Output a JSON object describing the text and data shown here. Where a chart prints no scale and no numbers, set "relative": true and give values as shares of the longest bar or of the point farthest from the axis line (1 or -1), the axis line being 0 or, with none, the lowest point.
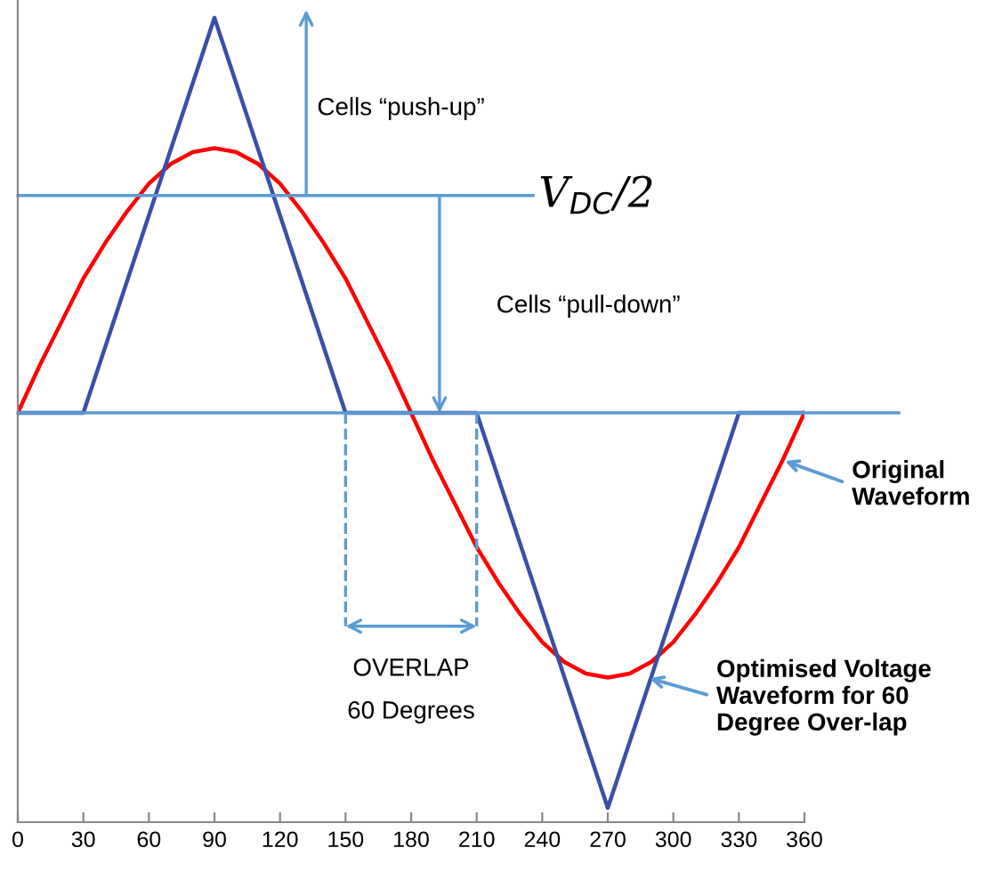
{
  "chart_data": {
    "type": "line",
    "relative": true,
    "x": [
      0,
      10,
      20,
      30,
      40,
      50,
      60,
      70,
      80,
      90,
      100,
      110,
      120,
      130,
      140,
      150,
      160,
      170,
      180,
      190,
      200,
      210,
      220,
      230,
      240,
      250,
      260,
      270,
      280,
      290,
      300,
      310,
      320,
      330,
      340,
      350,
      360
    ],
    "series": [
      {
        "color": "#ff0000",
        "values": [
          0,
          0.12,
          0.23,
          0.34,
          0.43,
          0.51,
          0.58,
          0.63,
          0.66,
          0.67,
          0.66,
          0.63,
          0.58,
          0.51,
          0.43,
          0.34,
          0.23,
          0.12,
          0,
          -0.12,
          -0.23,
          -0.34,
          -0.43,
          -0.51,
          -0.58,
          -0.63,
          -0.66,
          -0.67,
          -0.66,
          -0.63,
          -0.58,
          -0.51,
          -0.43,
          -0.34,
          -0.23,
          -0.12,
          0
        ]
      },
      {
        "color": "#3a4fa6",
        "x": [
          0,
          30,
          90,
          150,
          210,
          270,
          330,
          360
        ],
        "values": [
          0,
          0,
          1,
          0,
          0,
          -1,
          0,
          0
        ]
      }
    ],
    "xlim": [
      0,
      360
    ],
    "xticks": [
      0,
      30,
      60,
      90,
      120,
      150,
      180,
      210,
      240,
      270,
      300,
      330,
      360
    ],
    "tick_labels": "x",
    "marker": "none",
    "line_style": "solid",
    "grid": false,
    "legend": false,
    "ref_lines": [
      {
        "axis": "y",
        "value": 0,
        "color": "#5b9bd5"
      },
      {
        "axis": "y",
        "value": 0.55,
        "label": "V$_{DC}$/2",
        "color": "#5b9bd5"
      }
    ],
    "annotations": [
      "Cells “push-up”",
      "Cells “pull-down”",
      "OVERLAP\n60 Degrees",
      {
        "text": "Original\nWaveform",
        "x": 350,
        "y": -0.12
      },
      {
        "text": "Optimised Voltage\nWaveform for 60\nDegree Over-lap",
        "x": 288,
        "y": -0.67
      }
    ]
  }
}
